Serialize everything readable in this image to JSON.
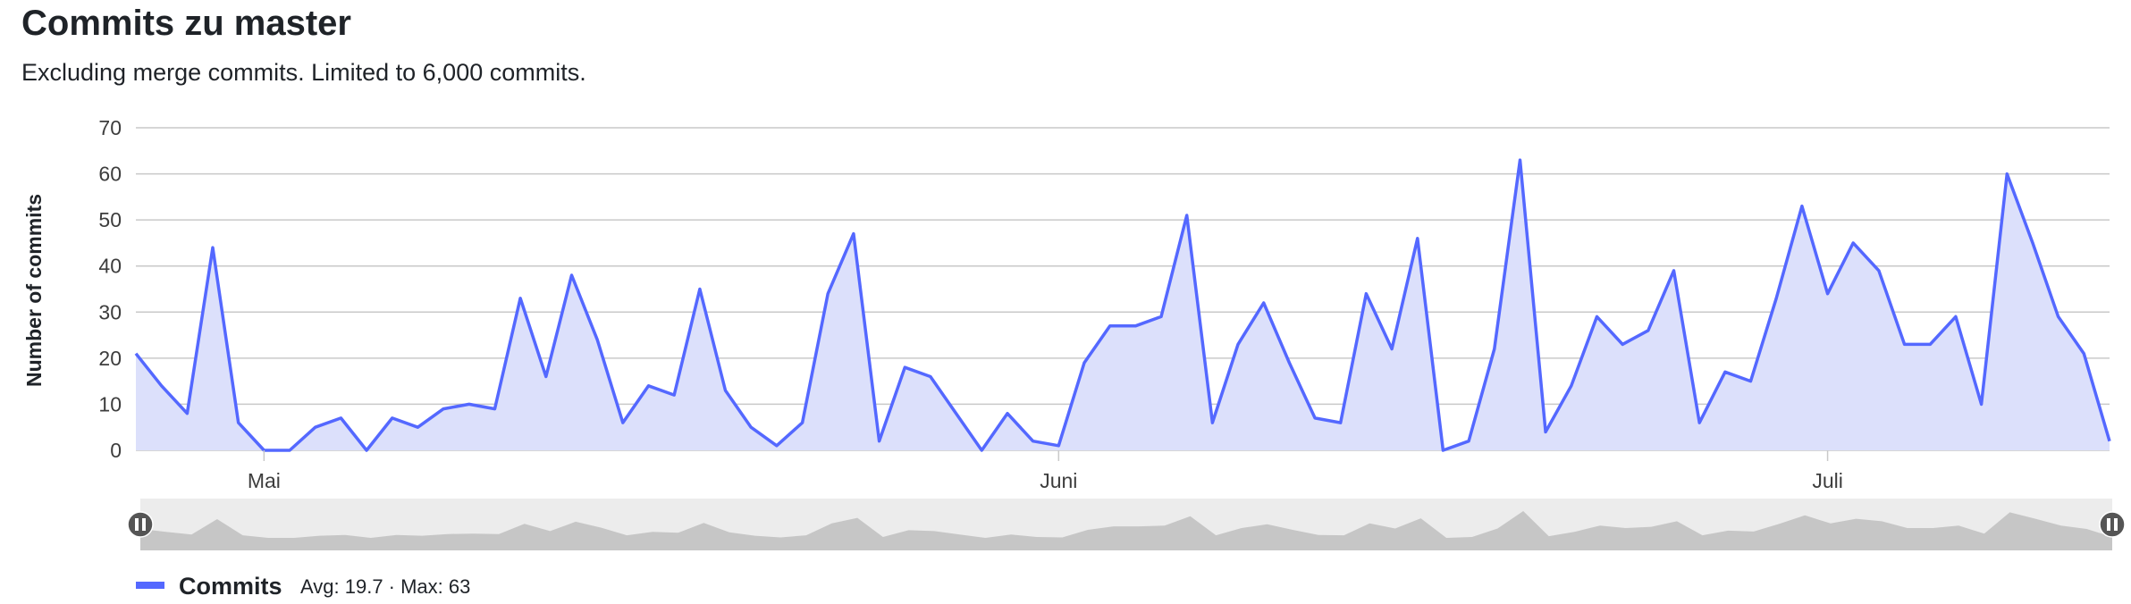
{
  "page": {
    "title": "Commits zu master",
    "subtitle": "Excluding merge commits. Limited to 6,000 commits."
  },
  "colors": {
    "line": "#5468ff",
    "fill": "#dce0fb",
    "grid": "#c9c9c9",
    "navigator_bg": "#ececec",
    "navigator_series": "#c6c6c6",
    "handle": "#555555"
  },
  "chart_data": {
    "type": "area",
    "ylabel": "Number of commits",
    "xlabel": "",
    "ylim": [
      0,
      70
    ],
    "yticks": [
      0,
      10,
      20,
      30,
      40,
      50,
      60,
      70
    ],
    "grid": true,
    "x_start": "2024-04-26",
    "x_month_labels": [
      {
        "label": "Mai",
        "date": "2024-05-01"
      },
      {
        "label": "Juni",
        "date": "2024-06-01"
      },
      {
        "label": "Juli",
        "date": "2024-07-01"
      }
    ],
    "series": [
      {
        "name": "Commits",
        "values": [
          21,
          14,
          8,
          44,
          6,
          0,
          0,
          5,
          7,
          0,
          7,
          5,
          9,
          10,
          9,
          33,
          16,
          38,
          24,
          6,
          14,
          12,
          35,
          13,
          5,
          1,
          6,
          34,
          47,
          2,
          18,
          16,
          8,
          0,
          8,
          2,
          1,
          19,
          27,
          27,
          29,
          51,
          6,
          23,
          32,
          19,
          7,
          6,
          34,
          22,
          46,
          0,
          2,
          22,
          63,
          4,
          14,
          29,
          23,
          26,
          39,
          6,
          17,
          15,
          33,
          53,
          34,
          45,
          39,
          23,
          23,
          29,
          10,
          60,
          45,
          29,
          21,
          2
        ]
      }
    ],
    "legend": {
      "position": "bottom-left",
      "label": "Commits",
      "stats": "Avg: 19.7 · Max: 63"
    }
  }
}
